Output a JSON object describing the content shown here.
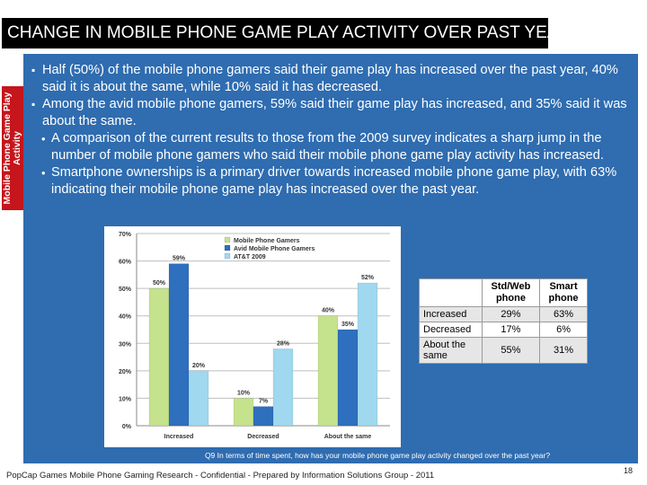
{
  "slide": {
    "title": "CHANGE IN MOBILE PHONE GAME PLAY ACTIVITY OVER PAST YEAR",
    "side_tab": "Mobile Phone Game Play Activity",
    "footer": "PopCap Games Mobile Phone Gaming Research - Confidential - Prepared by Information Solutions Group - 2011",
    "page_number": "18",
    "question": "Q9 In terms of time spent, how has your mobile phone game play activity changed over the past year?",
    "colors": {
      "title_bar": "#000000",
      "panel": "#2f6cb0",
      "side_tab": "#c4161c"
    }
  },
  "bullets": [
    "Half (50%) of the mobile phone gamers said their game play has increased over the past year, 40% said it is about the same, while 10% said it has decreased.",
    "Among the avid mobile phone gamers, 59% said their game play has increased, and 35% said it was about the same."
  ],
  "sub_bullets": [
    "A comparison of the current results to those from the 2009 survey indicates a sharp jump in the number of mobile phone gamers who said their mobile phone game play activity has increased.",
    "Smartphone ownerships is a primary driver towards increased mobile phone game play, with 63% indicating their mobile phone game play has increased over the past year."
  ],
  "table": {
    "headers": [
      "",
      "Std/Web phone",
      "Smart phone"
    ],
    "rows": [
      {
        "label": "Increased",
        "std": "29%",
        "smart": "63%"
      },
      {
        "label": "Decreased",
        "std": "17%",
        "smart": "6%"
      },
      {
        "label": "About the same",
        "std": "55%",
        "smart": "31%"
      }
    ]
  },
  "chart_data": {
    "type": "bar",
    "categories": [
      "Increased",
      "Decreased",
      "About the same"
    ],
    "series": [
      {
        "name": "Mobile Phone Gamers",
        "values": [
          50,
          10,
          40
        ],
        "color": "#c5e28c"
      },
      {
        "name": "Avid Mobile Phone Gamers",
        "values": [
          59,
          7,
          35
        ],
        "color": "#2e6fbe"
      },
      {
        "name": "AT&T 2009",
        "values": [
          20,
          28,
          52
        ],
        "color": "#9fd8ef"
      }
    ],
    "ylim": [
      0,
      70
    ],
    "yticks": [
      "0%",
      "10%",
      "20%",
      "30%",
      "40%",
      "50%",
      "60%",
      "70%"
    ],
    "value_suffix": "%",
    "grid": true,
    "legend": "top-center",
    "title": "",
    "xlabel": "",
    "ylabel": ""
  }
}
